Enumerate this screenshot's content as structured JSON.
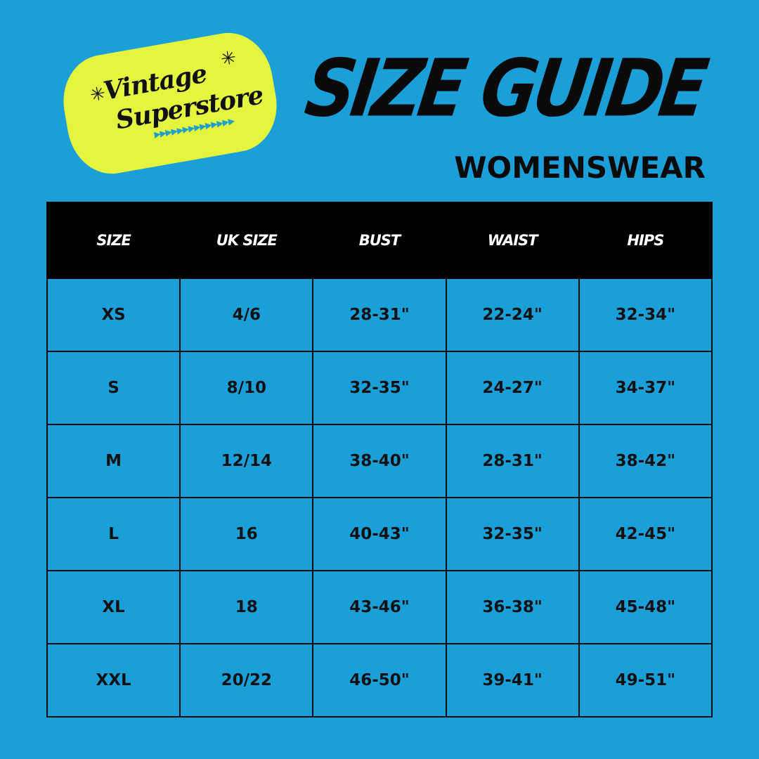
{
  "logo": {
    "line1": "Vintage",
    "line2": "Superstore",
    "arrows": "▶▶▶▶▶▶▶▶▶▶▶▶▶▶",
    "brand_color": "#e3f53e",
    "accent_color": "#1fa0c8"
  },
  "header": {
    "title": "SIZE GUIDE",
    "subtitle": "WOMENSWEAR"
  },
  "colors": {
    "background": "#1a9fd8",
    "header_bg": "#000000"
  },
  "table": {
    "columns": [
      "SIZE",
      "UK SIZE",
      "BUST",
      "WAIST",
      "HIPS"
    ],
    "rows": [
      [
        "XS",
        "4/6",
        "28-31\"",
        "22-24\"",
        "32-34\""
      ],
      [
        "S",
        "8/10",
        "32-35\"",
        "24-27\"",
        "34-37\""
      ],
      [
        "M",
        "12/14",
        "38-40\"",
        "28-31\"",
        "38-42\""
      ],
      [
        "L",
        "16",
        "40-43\"",
        "32-35\"",
        "42-45\""
      ],
      [
        "XL",
        "18",
        "43-46\"",
        "36-38\"",
        "45-48\""
      ],
      [
        "XXL",
        "20/22",
        "46-50\"",
        "39-41\"",
        "49-51\""
      ]
    ]
  }
}
